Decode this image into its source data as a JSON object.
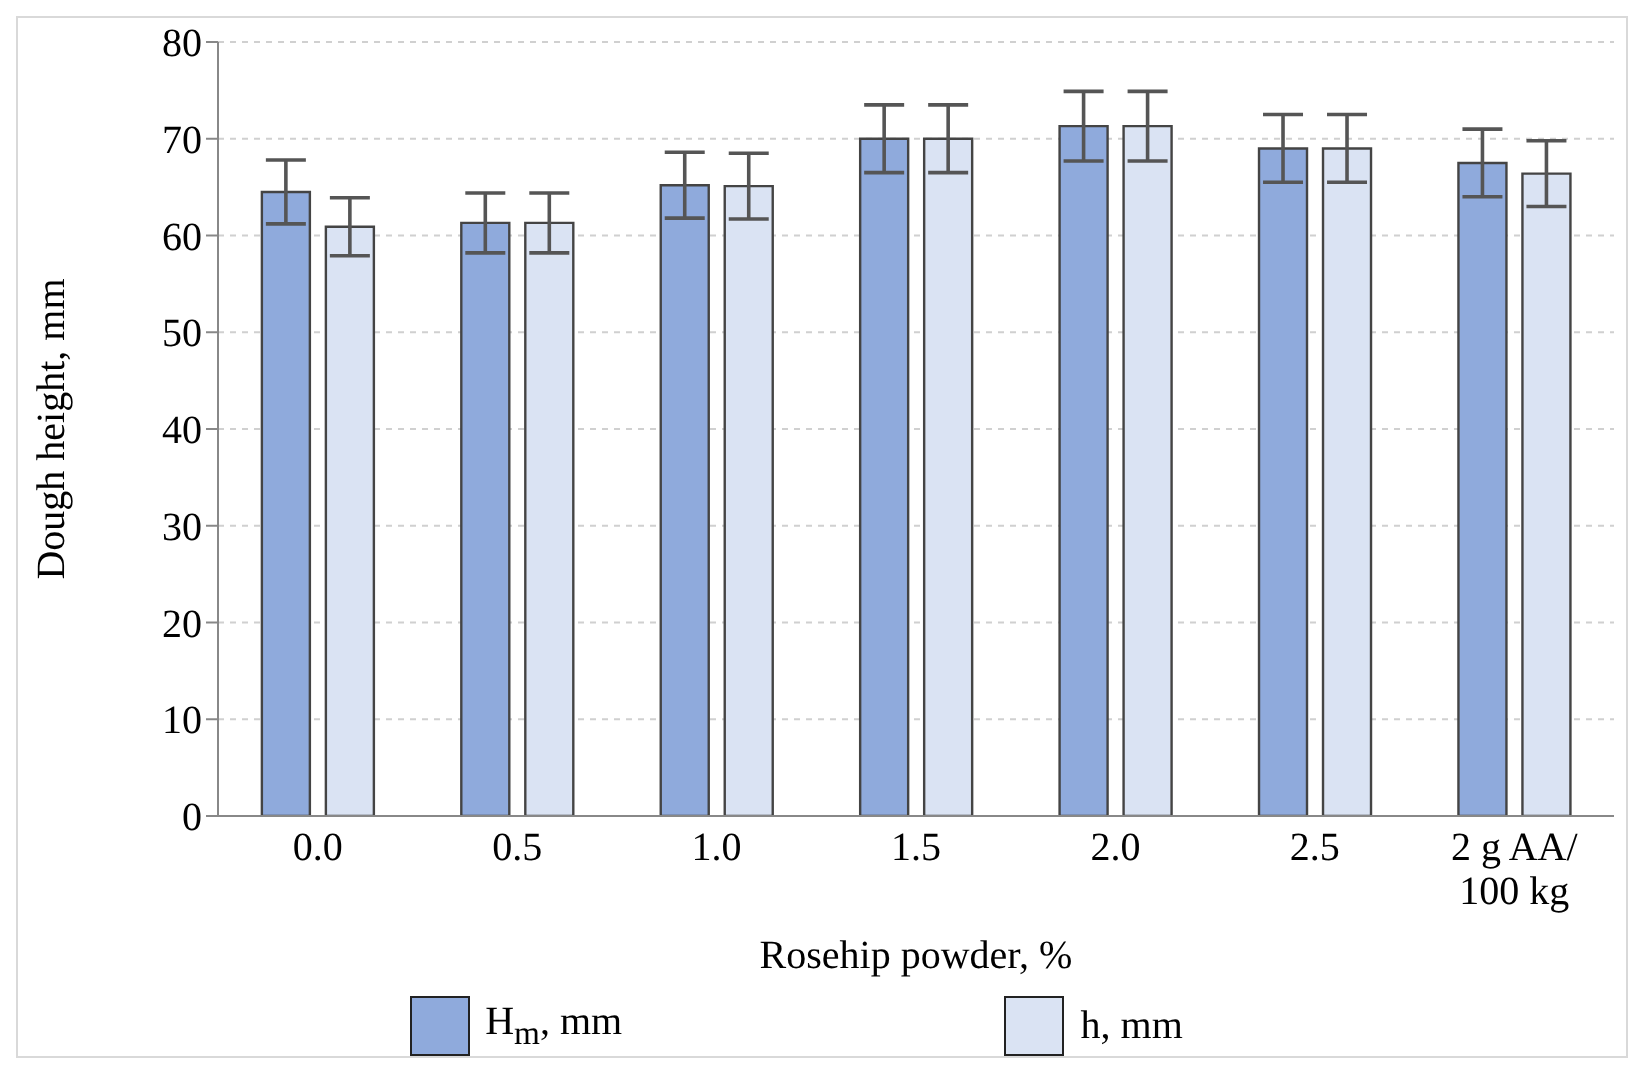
{
  "chart_data": {
    "type": "bar",
    "xlabel": "Rosehip powder, %",
    "ylabel": "Dough height, mm",
    "categories": [
      "0.0",
      "0.5",
      "1.0",
      "1.5",
      "2.0",
      "2.5",
      "2 g AA/ 100 kg"
    ],
    "series": [
      {
        "name": "H$_{m}$, mm",
        "color": "#8faadc",
        "values": [
          64.5,
          61.3,
          65.2,
          70.0,
          71.3,
          69.0,
          67.5
        ],
        "errors": [
          3.3,
          3.1,
          3.4,
          3.5,
          3.6,
          3.5,
          3.5
        ]
      },
      {
        "name": "h, mm",
        "color": "#dae3f3",
        "values": [
          60.9,
          61.3,
          65.1,
          70.0,
          71.3,
          69.0,
          66.4
        ],
        "errors": [
          3.0,
          3.1,
          3.4,
          3.5,
          3.6,
          3.5,
          3.4
        ]
      }
    ],
    "ylim": [
      0,
      80
    ],
    "yticks": [
      0,
      10,
      20,
      30,
      40,
      50,
      60,
      70,
      80
    ],
    "grid": "y",
    "legend": "bottom"
  }
}
